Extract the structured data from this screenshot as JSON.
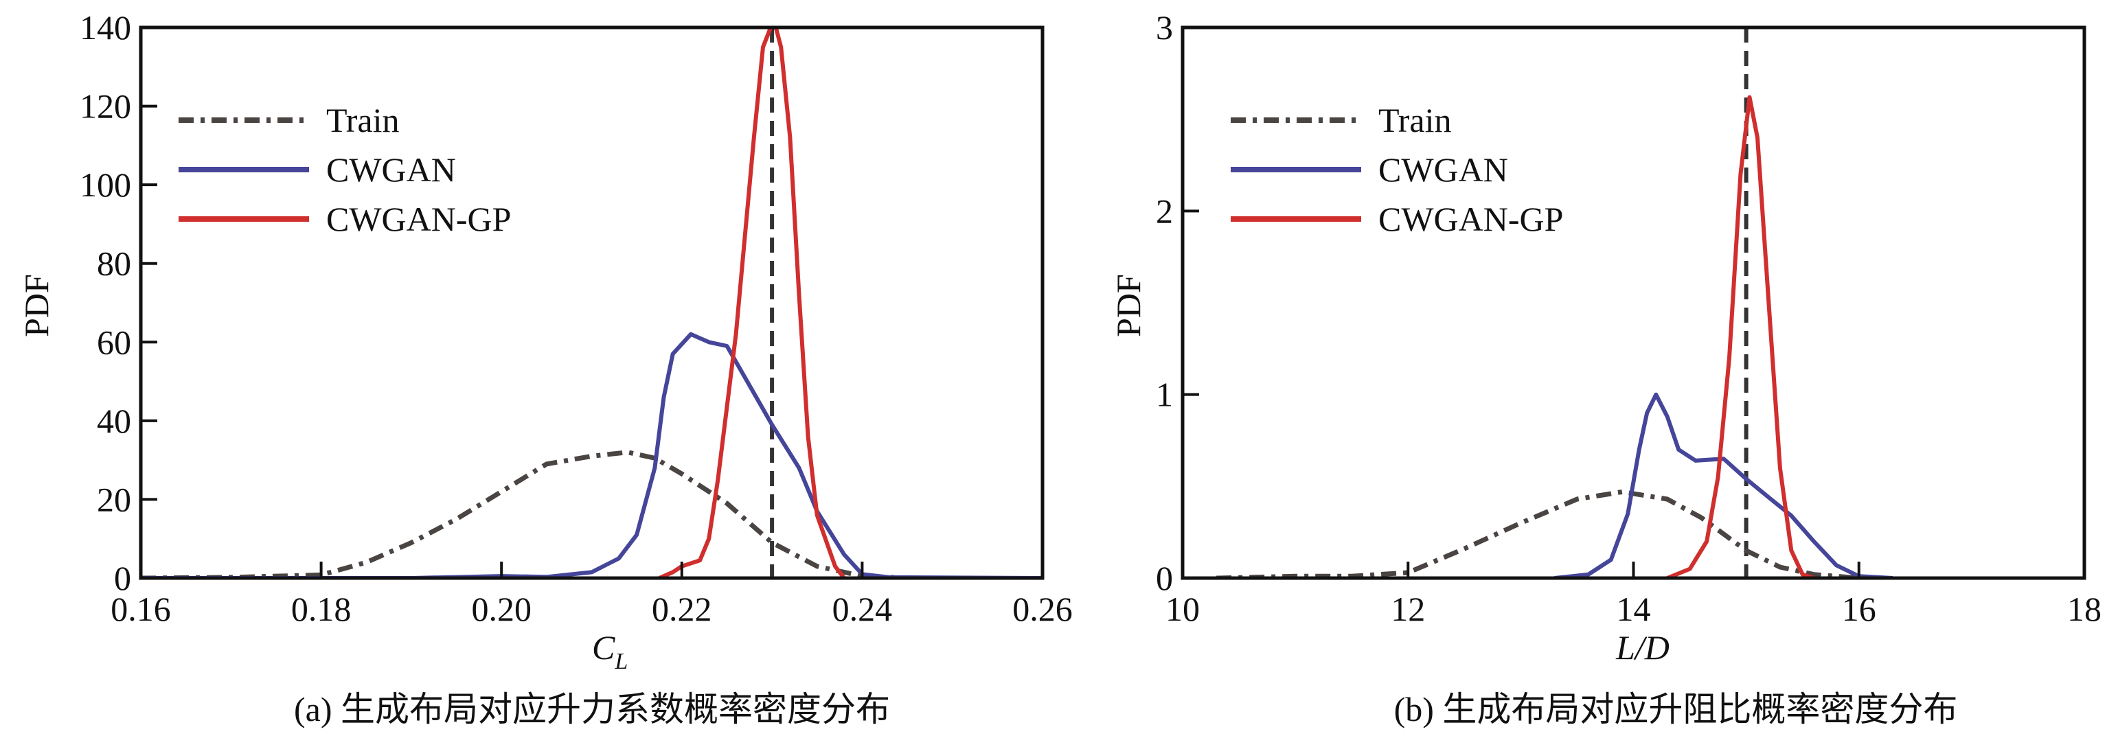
{
  "chart_data": [
    {
      "type": "line",
      "caption": "(a) 生成布局对应升力系数概率密度分布",
      "xlabel_main": "C",
      "xlabel_sub": "L",
      "ylabel": "PDF",
      "xlim": [
        0.16,
        0.26
      ],
      "ylim": [
        0,
        140
      ],
      "xticks": [
        "0.16",
        "0.18",
        "0.20",
        "0.22",
        "0.24",
        "0.26"
      ],
      "xtick_values": [
        0.16,
        0.18,
        0.2,
        0.22,
        0.24,
        0.26
      ],
      "yticks": [
        "0",
        "20",
        "40",
        "60",
        "80",
        "100",
        "120",
        "140"
      ],
      "ytick_values": [
        0,
        20,
        40,
        60,
        80,
        100,
        120,
        140
      ],
      "grid": false,
      "legend_position": "top-left",
      "reference_line_x": 0.23,
      "series": [
        {
          "name": "Train",
          "color": "#4a4442",
          "style": "dashdot",
          "x": [
            0.16,
            0.17,
            0.18,
            0.185,
            0.19,
            0.195,
            0.2,
            0.205,
            0.21,
            0.214,
            0.217,
            0.22,
            0.225,
            0.23,
            0.235,
            0.24,
            0.245
          ],
          "y": [
            0,
            0.2,
            0.8,
            4,
            9,
            15,
            22,
            29,
            31,
            32,
            30.5,
            26.5,
            19,
            9,
            3,
            0.5,
            0
          ]
        },
        {
          "name": "CWGAN",
          "color": "#45459a",
          "style": "solid",
          "x": [
            0.16,
            0.19,
            0.2,
            0.205,
            0.21,
            0.213,
            0.215,
            0.217,
            0.218,
            0.219,
            0.221,
            0.223,
            0.225,
            0.227,
            0.23,
            0.233,
            0.235,
            0.238,
            0.24,
            0.243,
            0.26
          ],
          "y": [
            0,
            0,
            0.5,
            0.3,
            1.5,
            5,
            11,
            28,
            46,
            57,
            62,
            60,
            59,
            51,
            39,
            28,
            17,
            6,
            1,
            0.2,
            0
          ]
        },
        {
          "name": "CWGAN-GP",
          "color": "#d12e2e",
          "style": "solid",
          "x": [
            0.2175,
            0.219,
            0.22,
            0.222,
            0.223,
            0.224,
            0.226,
            0.228,
            0.229,
            0.2302,
            0.231,
            0.232,
            0.233,
            0.234,
            0.235,
            0.237,
            0.238
          ],
          "y": [
            0,
            1.5,
            3,
            4.5,
            10,
            25,
            62,
            112,
            135,
            142,
            135,
            112,
            72,
            36,
            16,
            3,
            0
          ]
        }
      ]
    },
    {
      "type": "line",
      "caption": "(b) 生成布局对应升阻比概率密度分布",
      "xlabel_main": "L/D",
      "ylabel": "PDF",
      "xlim": [
        10,
        18
      ],
      "ylim": [
        0,
        3
      ],
      "xticks": [
        "10",
        "12",
        "14",
        "16",
        "18"
      ],
      "xtick_values": [
        10,
        12,
        14,
        16,
        18
      ],
      "yticks": [
        "0",
        "1",
        "2",
        "3"
      ],
      "ytick_values": [
        0,
        1,
        2,
        3
      ],
      "grid": false,
      "legend_position": "top-left",
      "reference_line_x": 15,
      "series": [
        {
          "name": "Train",
          "color": "#4a4442",
          "style": "dashdot",
          "x": [
            10.3,
            11,
            11.5,
            12,
            12.5,
            13,
            13.5,
            13.9,
            14.3,
            14.6,
            15,
            15.3,
            15.6,
            16
          ],
          "y": [
            0,
            0.01,
            0.01,
            0.03,
            0.16,
            0.3,
            0.43,
            0.47,
            0.43,
            0.33,
            0.15,
            0.06,
            0.02,
            0
          ]
        },
        {
          "name": "CWGAN",
          "color": "#45459a",
          "style": "solid",
          "x": [
            13.3,
            13.6,
            13.8,
            13.95,
            14.05,
            14.12,
            14.2,
            14.3,
            14.4,
            14.55,
            14.8,
            15.0,
            15.2,
            15.4,
            15.6,
            15.8,
            16.0,
            16.3
          ],
          "y": [
            0,
            0.02,
            0.1,
            0.35,
            0.7,
            0.9,
            1.0,
            0.88,
            0.7,
            0.64,
            0.65,
            0.54,
            0.44,
            0.34,
            0.2,
            0.07,
            0.01,
            0
          ]
        },
        {
          "name": "CWGAN-GP",
          "color": "#d12e2e",
          "style": "solid",
          "x": [
            14.3,
            14.5,
            14.65,
            14.75,
            14.85,
            14.95,
            15.03,
            15.1,
            15.2,
            15.3,
            15.4,
            15.5,
            15.6
          ],
          "y": [
            0,
            0.05,
            0.2,
            0.55,
            1.2,
            2.2,
            2.62,
            2.4,
            1.5,
            0.6,
            0.15,
            0.02,
            0
          ]
        }
      ]
    }
  ]
}
